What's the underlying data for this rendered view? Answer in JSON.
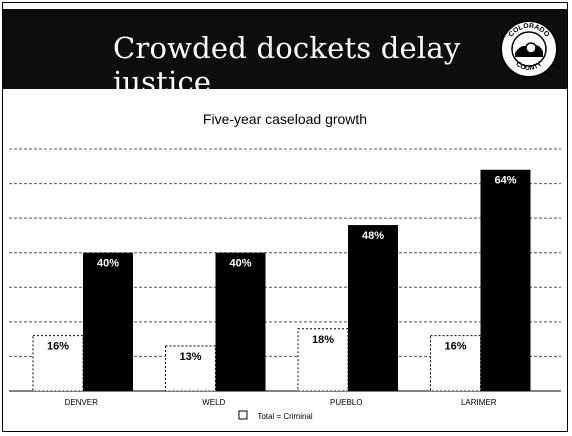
{
  "banner": {
    "title": "Crowded dockets delay justice",
    "seal_top_text": "COLORADO",
    "seal_bottom_text": "COUNTY"
  },
  "colors": {
    "banner_bg": "#0d0d0d",
    "criminal_bar": "#000000",
    "total_bar": "#ffffff",
    "gridline": "#555555"
  },
  "chart_data": {
    "type": "bar",
    "title": "Five-year caseload growth",
    "categories": [
      "DENVER",
      "WELD",
      "PUEBLO",
      "LARIMER"
    ],
    "series": [
      {
        "name": "Total",
        "values": [
          16,
          13,
          18,
          16
        ],
        "labels": [
          "16%",
          "13%",
          "18%",
          "16%"
        ]
      },
      {
        "name": "Criminal",
        "values": [
          40,
          40,
          48,
          64
        ],
        "labels": [
          "40%",
          "40%",
          "48%",
          "64%"
        ]
      }
    ],
    "ylim": [
      0,
      70
    ],
    "grid": true,
    "legend": {
      "text": "Total = Criminal",
      "placement": "bottom"
    }
  }
}
